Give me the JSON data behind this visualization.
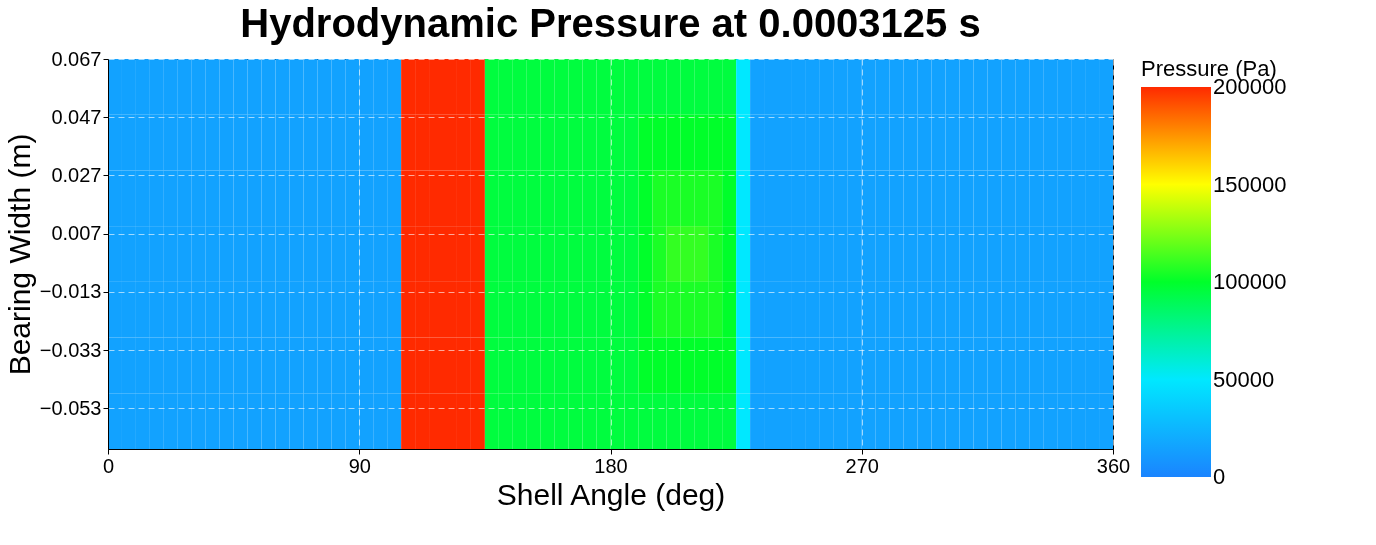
{
  "chart_data": {
    "type": "heatmap",
    "title": "Hydrodynamic Pressure at 0.0003125 s",
    "xlabel": "Shell Angle (deg)",
    "ylabel": "Bearing Width (m)",
    "clabel": "Pressure (Pa)",
    "x": [
      2.5,
      7.5,
      12.5,
      17.5,
      22.5,
      27.5,
      32.5,
      37.5,
      42.5,
      47.5,
      52.5,
      57.5,
      62.5,
      67.5,
      72.5,
      77.5,
      82.5,
      87.5,
      92.5,
      97.5,
      102.5,
      107.5,
      112.5,
      117.5,
      122.5,
      127.5,
      132.5,
      137.5,
      142.5,
      147.5,
      152.5,
      157.5,
      162.5,
      167.5,
      172.5,
      177.5,
      182.5,
      187.5,
      192.5,
      197.5,
      202.5,
      207.5,
      212.5,
      217.5,
      222.5,
      227.5,
      232.5,
      237.5,
      242.5,
      247.5,
      252.5,
      257.5,
      262.5,
      267.5,
      272.5,
      277.5,
      282.5,
      287.5,
      292.5,
      297.5,
      302.5,
      307.5,
      312.5,
      317.5,
      322.5,
      327.5,
      332.5,
      337.5,
      342.5,
      347.5,
      352.5,
      357.5
    ],
    "cells": [
      [
        15000,
        15000,
        15000,
        15000,
        15000,
        15000,
        15000,
        15000,
        15000,
        15000,
        15000,
        15000,
        15000,
        15000,
        15000,
        15000,
        15000,
        15000,
        15000,
        15000,
        15000,
        200000,
        200000,
        200000,
        200000,
        200000,
        200000,
        95000,
        95000,
        95000,
        95000,
        95000,
        95000,
        95000,
        95000,
        95000,
        95000,
        95000,
        95000,
        95000,
        95000,
        95000,
        95000,
        95000,
        95000,
        50000,
        15000,
        15000,
        15000,
        15000,
        15000,
        15000,
        15000,
        15000,
        15000,
        15000,
        15000,
        15000,
        15000,
        15000,
        15000,
        15000,
        15000,
        15000,
        15000,
        15000,
        15000,
        15000,
        15000,
        15000,
        15000,
        15000
      ],
      [
        15000,
        15000,
        15000,
        15000,
        15000,
        15000,
        15000,
        15000,
        15000,
        15000,
        15000,
        15000,
        15000,
        15000,
        15000,
        15000,
        15000,
        15000,
        15000,
        15000,
        15000,
        200000,
        200000,
        200000,
        200000,
        200000,
        200000,
        95000,
        95000,
        95000,
        95000,
        95000,
        95000,
        95000,
        95000,
        95000,
        95000,
        95000,
        100000,
        100000,
        100000,
        100000,
        100000,
        100000,
        100000,
        50000,
        15000,
        15000,
        15000,
        15000,
        15000,
        15000,
        15000,
        15000,
        15000,
        15000,
        15000,
        15000,
        15000,
        15000,
        15000,
        15000,
        15000,
        15000,
        15000,
        15000,
        15000,
        15000,
        15000,
        15000,
        15000,
        15000
      ],
      [
        15000,
        15000,
        15000,
        15000,
        15000,
        15000,
        15000,
        15000,
        15000,
        15000,
        15000,
        15000,
        15000,
        15000,
        15000,
        15000,
        15000,
        15000,
        15000,
        15000,
        15000,
        200000,
        200000,
        200000,
        200000,
        200000,
        200000,
        95000,
        95000,
        95000,
        95000,
        95000,
        95000,
        95000,
        95000,
        95000,
        95000,
        95000,
        100000,
        105000,
        105000,
        105000,
        105000,
        105000,
        100000,
        50000,
        15000,
        15000,
        15000,
        15000,
        15000,
        15000,
        15000,
        15000,
        15000,
        15000,
        15000,
        15000,
        15000,
        15000,
        15000,
        15000,
        15000,
        15000,
        15000,
        15000,
        15000,
        15000,
        15000,
        15000,
        15000,
        15000
      ],
      [
        15000,
        15000,
        15000,
        15000,
        15000,
        15000,
        15000,
        15000,
        15000,
        15000,
        15000,
        15000,
        15000,
        15000,
        15000,
        15000,
        15000,
        15000,
        15000,
        15000,
        15000,
        200000,
        200000,
        200000,
        200000,
        200000,
        200000,
        95000,
        95000,
        95000,
        95000,
        95000,
        95000,
        95000,
        95000,
        95000,
        95000,
        95000,
        100000,
        105000,
        110000,
        110000,
        110000,
        105000,
        100000,
        50000,
        15000,
        15000,
        15000,
        15000,
        15000,
        15000,
        15000,
        15000,
        15000,
        15000,
        15000,
        15000,
        15000,
        15000,
        15000,
        15000,
        15000,
        15000,
        15000,
        15000,
        15000,
        15000,
        15000,
        15000,
        15000,
        15000
      ],
      [
        15000,
        15000,
        15000,
        15000,
        15000,
        15000,
        15000,
        15000,
        15000,
        15000,
        15000,
        15000,
        15000,
        15000,
        15000,
        15000,
        15000,
        15000,
        15000,
        15000,
        15000,
        200000,
        200000,
        200000,
        200000,
        200000,
        200000,
        95000,
        95000,
        95000,
        95000,
        95000,
        95000,
        95000,
        95000,
        95000,
        95000,
        95000,
        100000,
        105000,
        105000,
        105000,
        105000,
        105000,
        100000,
        50000,
        15000,
        15000,
        15000,
        15000,
        15000,
        15000,
        15000,
        15000,
        15000,
        15000,
        15000,
        15000,
        15000,
        15000,
        15000,
        15000,
        15000,
        15000,
        15000,
        15000,
        15000,
        15000,
        15000,
        15000,
        15000,
        15000
      ],
      [
        15000,
        15000,
        15000,
        15000,
        15000,
        15000,
        15000,
        15000,
        15000,
        15000,
        15000,
        15000,
        15000,
        15000,
        15000,
        15000,
        15000,
        15000,
        15000,
        15000,
        15000,
        200000,
        200000,
        200000,
        200000,
        200000,
        200000,
        95000,
        95000,
        95000,
        95000,
        95000,
        95000,
        95000,
        95000,
        95000,
        95000,
        95000,
        100000,
        100000,
        100000,
        100000,
        100000,
        100000,
        100000,
        50000,
        15000,
        15000,
        15000,
        15000,
        15000,
        15000,
        15000,
        15000,
        15000,
        15000,
        15000,
        15000,
        15000,
        15000,
        15000,
        15000,
        15000,
        15000,
        15000,
        15000,
        15000,
        15000,
        15000,
        15000,
        15000,
        15000
      ],
      [
        15000,
        15000,
        15000,
        15000,
        15000,
        15000,
        15000,
        15000,
        15000,
        15000,
        15000,
        15000,
        15000,
        15000,
        15000,
        15000,
        15000,
        15000,
        15000,
        15000,
        15000,
        200000,
        200000,
        200000,
        200000,
        200000,
        200000,
        95000,
        95000,
        95000,
        95000,
        95000,
        95000,
        95000,
        95000,
        95000,
        95000,
        95000,
        95000,
        95000,
        95000,
        95000,
        95000,
        95000,
        95000,
        50000,
        15000,
        15000,
        15000,
        15000,
        15000,
        15000,
        15000,
        15000,
        15000,
        15000,
        15000,
        15000,
        15000,
        15000,
        15000,
        15000,
        15000,
        15000,
        15000,
        15000,
        15000,
        15000,
        15000,
        15000,
        15000,
        15000
      ]
    ],
    "xlim": [
      0,
      360
    ],
    "xticks": [
      0,
      90,
      180,
      270,
      360
    ],
    "ylim": [
      -0.067,
      0.067
    ],
    "yticks": [
      0.067,
      0.047,
      0.027,
      0.007,
      -0.013,
      -0.033,
      -0.053
    ],
    "clim": [
      0,
      200000
    ],
    "cticks": [
      0,
      50000,
      100000,
      150000,
      200000
    ],
    "grid": true
  }
}
